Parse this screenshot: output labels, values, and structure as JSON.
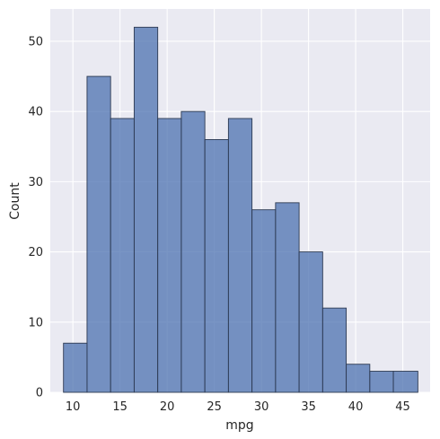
{
  "chart_data": {
    "type": "bar",
    "subtype": "histogram",
    "title": "",
    "xlabel": "mpg",
    "ylabel": "Count",
    "xlim": [
      7.6,
      47.9
    ],
    "ylim": [
      0,
      54.6
    ],
    "xticks": [
      10,
      15,
      20,
      25,
      30,
      35,
      40,
      45
    ],
    "yticks": [
      0,
      10,
      20,
      30,
      40,
      50
    ],
    "bin_edges": [
      9.0,
      11.5,
      14.0,
      16.5,
      19.0,
      21.5,
      24.0,
      26.5,
      29.0,
      31.5,
      34.0,
      36.5,
      39.0,
      41.5,
      44.0,
      46.6
    ],
    "values": [
      7,
      45,
      39,
      52,
      39,
      40,
      36,
      39,
      26,
      27,
      20,
      12,
      4,
      3,
      3
    ],
    "bar_color": "#4c72b0",
    "plot_background": "#eaeaf2",
    "grid": true,
    "legend": "none"
  }
}
